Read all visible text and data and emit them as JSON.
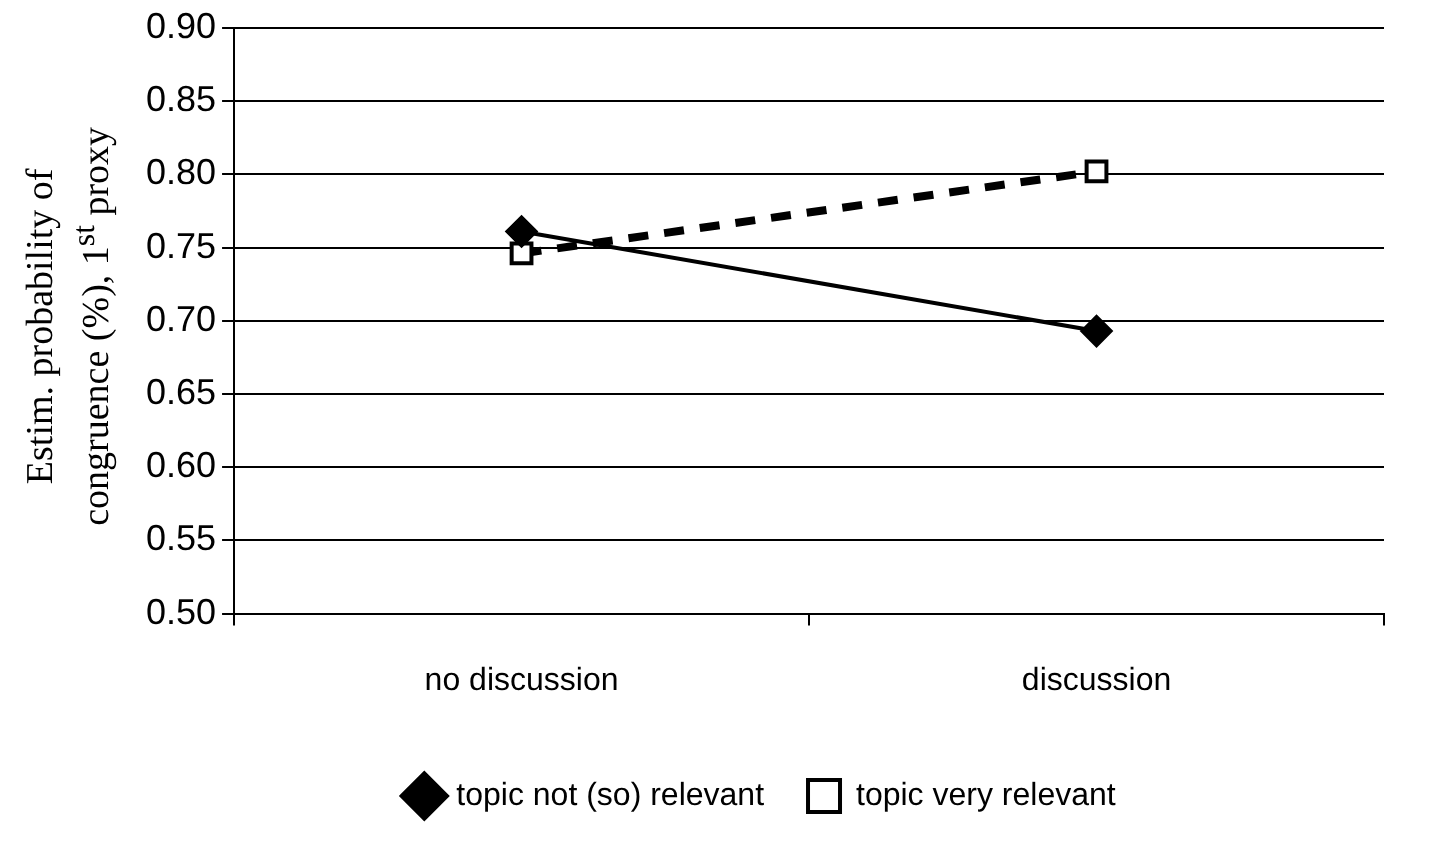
{
  "chart_data": {
    "type": "line",
    "ylabel": "Estim. probability of congruence (%), 1$^{st}$ proxy",
    "categories": [
      "no discussion",
      "discussion"
    ],
    "series": [
      {
        "name": "topic not (so) relevant",
        "color": "#000000",
        "values": [
          0.761,
          0.693
        ],
        "marker": "diamond",
        "line_style": "solid"
      },
      {
        "name": "topic very relevant",
        "color": "#000000",
        "values": [
          0.746,
          0.802
        ],
        "marker": "square",
        "line_style": "dashed"
      }
    ],
    "ylim": [
      0.5,
      0.9
    ],
    "yticks": [
      {
        "value": 0.5,
        "label": "0.50"
      },
      0.55,
      {
        "value": 0.6,
        "label": "0.60"
      },
      0.65,
      {
        "value": 0.7,
        "label": "0.70"
      },
      0.75,
      {
        "value": 0.8,
        "label": "0.80"
      },
      0.85,
      {
        "value": 0.9,
        "label": "0.90"
      }
    ],
    "grid": "y",
    "legend": "bottom"
  }
}
